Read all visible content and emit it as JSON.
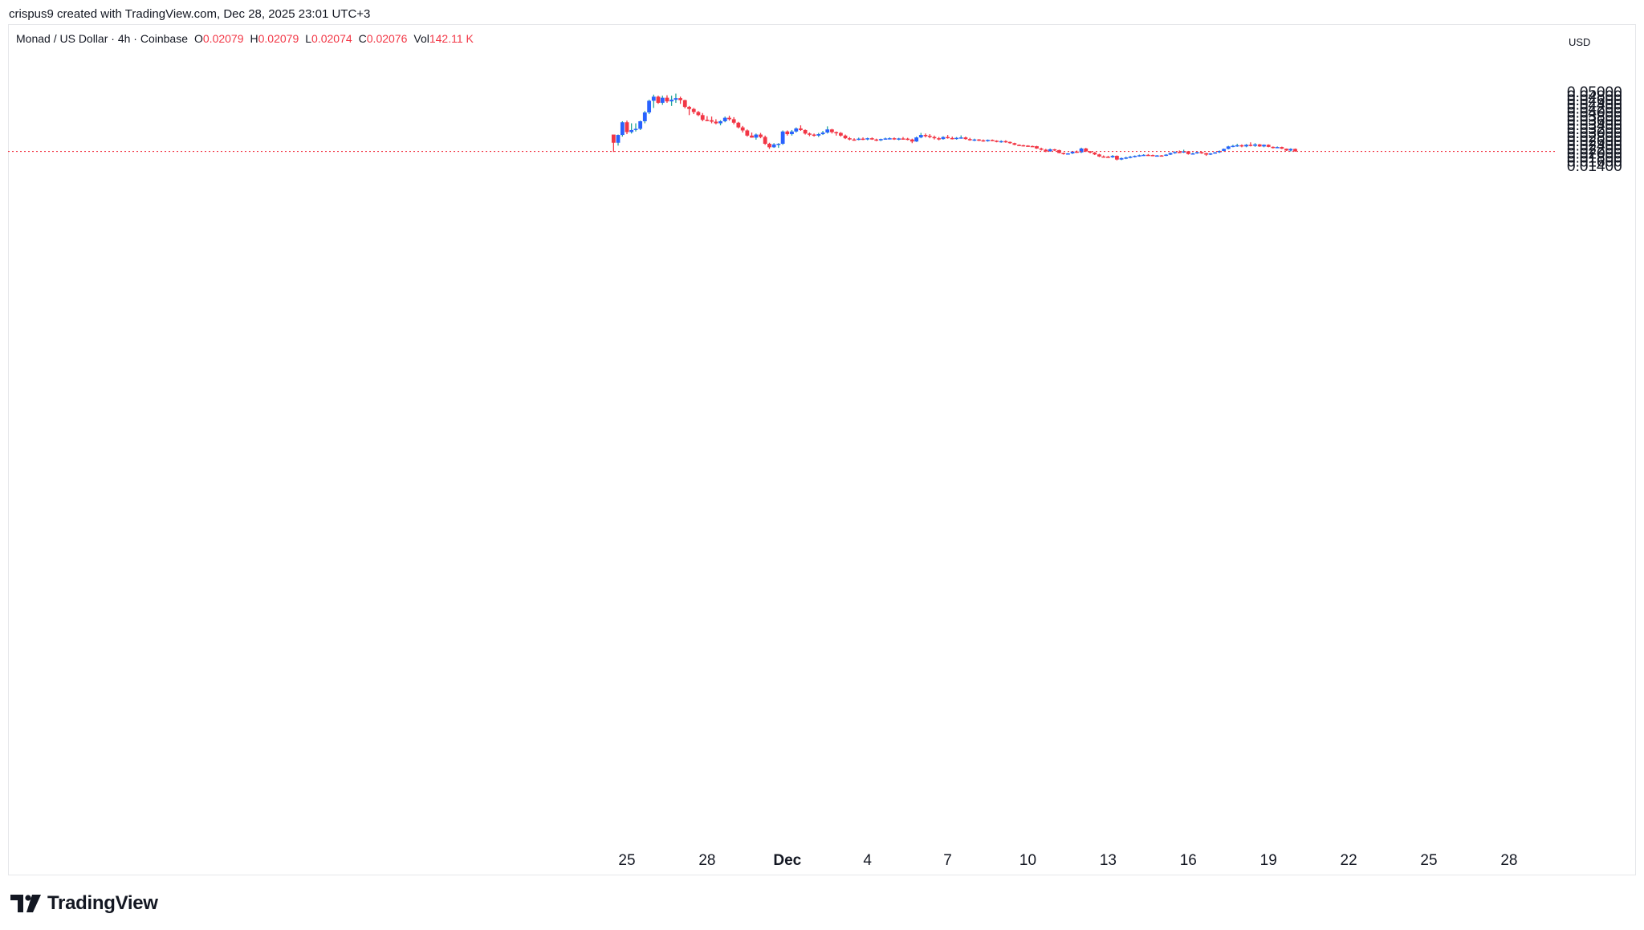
{
  "header": {
    "caption": "crispus9 created with TradingView.com, Dec 28, 2025 23:01 UTC+3"
  },
  "legend": {
    "symbol": "Monad / US Dollar · 4h · Coinbase",
    "o_label": "O",
    "o_value": "0.02079",
    "h_label": "H",
    "h_value": "0.02079",
    "l_label": "L",
    "l_value": "0.02074",
    "c_label": "C",
    "c_value": "0.02076",
    "vol_label": "Vol",
    "vol_value": "142.11 K"
  },
  "currency": "USD",
  "footer": {
    "brand": "TradingView"
  },
  "colors": {
    "up": "#2962ff",
    "down": "#f23645",
    "wick_up": "#26a69a",
    "wick_down": "#f23645",
    "price_line": "#f23645"
  },
  "chart_data": {
    "type": "candlestick",
    "x_ticks": [
      {
        "label": "25",
        "day": 25,
        "major": false
      },
      {
        "label": "28",
        "day": 28,
        "major": false
      },
      {
        "label": "Dec",
        "day": 31,
        "major": true
      },
      {
        "label": "4",
        "day": 34,
        "major": false
      },
      {
        "label": "7",
        "day": 37,
        "major": false
      },
      {
        "label": "10",
        "day": 40,
        "major": false
      },
      {
        "label": "13",
        "day": 43,
        "major": false
      },
      {
        "label": "16",
        "day": 46,
        "major": false
      },
      {
        "label": "19",
        "day": 49,
        "major": false
      },
      {
        "label": "22",
        "day": 52,
        "major": false
      },
      {
        "label": "25",
        "day": 55,
        "major": false
      },
      {
        "label": "28",
        "day": 58,
        "major": false
      }
    ],
    "y_ticks": [
      "0.05000",
      "0.04800",
      "0.04600",
      "0.04400",
      "0.04200",
      "0.04000",
      "0.03800",
      "0.03600",
      "0.03400",
      "0.03200",
      "0.03000",
      "0.02800",
      "0.02600",
      "0.02400",
      "0.02200",
      "0.02000",
      "0.01800",
      "0.01600",
      "0.01400"
    ],
    "ylim": [
      0.0125,
      0.0535
    ],
    "last_price": 0.02076,
    "candles": [
      [
        24.5,
        0.029,
        0.0288,
        0.0205,
        0.025
      ],
      [
        24.67,
        0.025,
        0.029,
        0.0236,
        0.0288
      ],
      [
        24.83,
        0.0288,
        0.0355,
        0.028,
        0.035
      ],
      [
        25.0,
        0.035,
        0.0358,
        0.0292,
        0.0302
      ],
      [
        25.17,
        0.0302,
        0.0345,
        0.0295,
        0.0312
      ],
      [
        25.33,
        0.0312,
        0.0345,
        0.0305,
        0.0318
      ],
      [
        25.5,
        0.0318,
        0.0358,
        0.0312,
        0.0355
      ],
      [
        25.67,
        0.0355,
        0.0405,
        0.0345,
        0.0398
      ],
      [
        25.83,
        0.0398,
        0.046,
        0.039,
        0.0455
      ],
      [
        26.0,
        0.0455,
        0.0485,
        0.042,
        0.0475
      ],
      [
        26.17,
        0.0475,
        0.048,
        0.044,
        0.0445
      ],
      [
        26.33,
        0.0445,
        0.048,
        0.0435,
        0.047
      ],
      [
        26.5,
        0.047,
        0.0482,
        0.0445,
        0.0452
      ],
      [
        26.67,
        0.0452,
        0.048,
        0.043,
        0.046
      ],
      [
        26.83,
        0.046,
        0.049,
        0.0445,
        0.0468
      ],
      [
        27.0,
        0.0468,
        0.0475,
        0.044,
        0.0458
      ],
      [
        27.17,
        0.0458,
        0.046,
        0.0418,
        0.0425
      ],
      [
        27.33,
        0.0425,
        0.043,
        0.0385,
        0.0415
      ],
      [
        27.5,
        0.0415,
        0.042,
        0.039,
        0.04
      ],
      [
        27.67,
        0.04,
        0.0405,
        0.038,
        0.0385
      ],
      [
        27.83,
        0.0385,
        0.0395,
        0.0355,
        0.0362
      ],
      [
        28.0,
        0.0362,
        0.038,
        0.0355,
        0.036
      ],
      [
        28.17,
        0.036,
        0.0378,
        0.0345,
        0.0353
      ],
      [
        28.33,
        0.0353,
        0.0365,
        0.034,
        0.0345
      ],
      [
        28.5,
        0.0345,
        0.036,
        0.0335,
        0.0355
      ],
      [
        28.67,
        0.0355,
        0.0378,
        0.035,
        0.0372
      ],
      [
        28.83,
        0.0372,
        0.0382,
        0.0358,
        0.0365
      ],
      [
        29.0,
        0.0365,
        0.0375,
        0.034,
        0.0348
      ],
      [
        29.17,
        0.0348,
        0.0352,
        0.032,
        0.0325
      ],
      [
        29.33,
        0.0325,
        0.0332,
        0.03,
        0.031
      ],
      [
        29.5,
        0.031,
        0.0315,
        0.028,
        0.0285
      ],
      [
        29.67,
        0.0285,
        0.03,
        0.0275,
        0.0275
      ],
      [
        29.83,
        0.0275,
        0.0295,
        0.0265,
        0.029
      ],
      [
        30.0,
        0.029,
        0.0298,
        0.0272,
        0.0278
      ],
      [
        30.17,
        0.0278,
        0.0285,
        0.024,
        0.0245
      ],
      [
        30.33,
        0.0245,
        0.025,
        0.022,
        0.0228
      ],
      [
        30.5,
        0.0228,
        0.0248,
        0.0225,
        0.0242
      ],
      [
        30.67,
        0.0242,
        0.0248,
        0.0225,
        0.0245
      ],
      [
        30.83,
        0.0245,
        0.031,
        0.024,
        0.0305
      ],
      [
        31.0,
        0.0305,
        0.031,
        0.0285,
        0.0292
      ],
      [
        31.17,
        0.0292,
        0.0312,
        0.0285,
        0.0305
      ],
      [
        31.33,
        0.0305,
        0.0325,
        0.03,
        0.032
      ],
      [
        31.5,
        0.032,
        0.0335,
        0.0308,
        0.0312
      ],
      [
        31.67,
        0.0312,
        0.0315,
        0.029,
        0.0295
      ],
      [
        31.83,
        0.0295,
        0.03,
        0.0282,
        0.029
      ],
      [
        32.0,
        0.029,
        0.0295,
        0.028,
        0.0285
      ],
      [
        32.17,
        0.0285,
        0.0298,
        0.0278,
        0.0292
      ],
      [
        32.33,
        0.0292,
        0.0308,
        0.0288,
        0.03
      ],
      [
        32.5,
        0.03,
        0.033,
        0.0295,
        0.0315
      ],
      [
        32.67,
        0.0315,
        0.0318,
        0.0295,
        0.0302
      ],
      [
        32.83,
        0.0302,
        0.0305,
        0.0285,
        0.0298
      ],
      [
        33.0,
        0.0298,
        0.0302,
        0.028,
        0.0285
      ],
      [
        33.17,
        0.0285,
        0.029,
        0.0268,
        0.0272
      ],
      [
        33.33,
        0.0272,
        0.0278,
        0.0262,
        0.0266
      ],
      [
        33.5,
        0.0266,
        0.0272,
        0.026,
        0.0265
      ],
      [
        33.67,
        0.0265,
        0.0275,
        0.0262,
        0.027
      ],
      [
        33.83,
        0.027,
        0.0276,
        0.0263,
        0.0268
      ],
      [
        34.0,
        0.0268,
        0.0275,
        0.0262,
        0.0272
      ],
      [
        34.17,
        0.0272,
        0.0276,
        0.0264,
        0.0266
      ],
      [
        34.33,
        0.0266,
        0.027,
        0.0258,
        0.0262
      ],
      [
        34.5,
        0.0262,
        0.027,
        0.0258,
        0.0268
      ],
      [
        34.67,
        0.0268,
        0.0275,
        0.0265,
        0.0271
      ],
      [
        34.83,
        0.0271,
        0.0276,
        0.0266,
        0.0272
      ],
      [
        35.0,
        0.0272,
        0.0276,
        0.0264,
        0.0268
      ],
      [
        35.17,
        0.0268,
        0.0274,
        0.0262,
        0.0271
      ],
      [
        35.33,
        0.0271,
        0.0278,
        0.0266,
        0.027
      ],
      [
        35.5,
        0.027,
        0.0274,
        0.0262,
        0.0266
      ],
      [
        35.67,
        0.0266,
        0.027,
        0.0248,
        0.0256
      ],
      [
        35.83,
        0.0256,
        0.028,
        0.0254,
        0.0276
      ],
      [
        36.0,
        0.0276,
        0.0298,
        0.0272,
        0.0288
      ],
      [
        36.17,
        0.0288,
        0.0295,
        0.0276,
        0.0284
      ],
      [
        36.33,
        0.0284,
        0.0292,
        0.0272,
        0.0278
      ],
      [
        36.5,
        0.0278,
        0.0285,
        0.0266,
        0.0272
      ],
      [
        36.67,
        0.0272,
        0.0278,
        0.0262,
        0.0268
      ],
      [
        36.83,
        0.0268,
        0.0282,
        0.0265,
        0.0278
      ],
      [
        37.0,
        0.0278,
        0.0288,
        0.027,
        0.0273
      ],
      [
        37.17,
        0.0273,
        0.028,
        0.0266,
        0.027
      ],
      [
        37.33,
        0.027,
        0.0278,
        0.0265,
        0.0274
      ],
      [
        37.5,
        0.0274,
        0.0286,
        0.027,
        0.0276
      ],
      [
        37.67,
        0.0276,
        0.028,
        0.0265,
        0.0268
      ],
      [
        37.83,
        0.0268,
        0.0274,
        0.026,
        0.0265
      ],
      [
        38.0,
        0.0265,
        0.027,
        0.0258,
        0.0266
      ],
      [
        38.17,
        0.0266,
        0.0268,
        0.0258,
        0.0262
      ],
      [
        38.33,
        0.0262,
        0.0266,
        0.0255,
        0.026
      ],
      [
        38.5,
        0.026,
        0.0266,
        0.0255,
        0.0264
      ],
      [
        38.67,
        0.0264,
        0.0266,
        0.0258,
        0.026
      ],
      [
        38.83,
        0.026,
        0.0262,
        0.0252,
        0.0256
      ],
      [
        39.0,
        0.0256,
        0.0262,
        0.025,
        0.0258
      ],
      [
        39.17,
        0.0258,
        0.0262,
        0.025,
        0.0254
      ],
      [
        39.33,
        0.0254,
        0.0256,
        0.0245,
        0.0248
      ],
      [
        39.5,
        0.0248,
        0.025,
        0.0238,
        0.024
      ],
      [
        39.67,
        0.024,
        0.0242,
        0.0234,
        0.0238
      ],
      [
        39.83,
        0.0238,
        0.024,
        0.0232,
        0.0236
      ],
      [
        40.0,
        0.0236,
        0.0238,
        0.023,
        0.0234
      ],
      [
        40.17,
        0.0234,
        0.0236,
        0.023,
        0.0233
      ],
      [
        40.33,
        0.0233,
        0.0235,
        0.022,
        0.0222
      ],
      [
        40.5,
        0.0222,
        0.0226,
        0.0212,
        0.0216
      ],
      [
        40.67,
        0.0216,
        0.022,
        0.0204,
        0.0208
      ],
      [
        40.83,
        0.0208,
        0.0222,
        0.0206,
        0.0218
      ],
      [
        41.0,
        0.0218,
        0.022,
        0.021,
        0.0214
      ],
      [
        41.17,
        0.0214,
        0.0216,
        0.0198,
        0.02
      ],
      [
        41.33,
        0.02,
        0.0202,
        0.0192,
        0.0195
      ],
      [
        41.5,
        0.0195,
        0.02,
        0.0192,
        0.0198
      ],
      [
        41.67,
        0.0198,
        0.021,
        0.0195,
        0.0207
      ],
      [
        41.83,
        0.0207,
        0.0212,
        0.02,
        0.0203
      ],
      [
        42.0,
        0.0203,
        0.0226,
        0.02,
        0.0222
      ],
      [
        42.17,
        0.0222,
        0.0225,
        0.0205,
        0.0208
      ],
      [
        42.33,
        0.0208,
        0.021,
        0.0198,
        0.0202
      ],
      [
        42.5,
        0.0202,
        0.0205,
        0.019,
        0.0193
      ],
      [
        42.67,
        0.0193,
        0.0196,
        0.018,
        0.0183
      ],
      [
        42.83,
        0.0183,
        0.0188,
        0.0178,
        0.0182
      ],
      [
        43.0,
        0.0182,
        0.0186,
        0.0176,
        0.0179
      ],
      [
        43.17,
        0.0179,
        0.019,
        0.0176,
        0.0186
      ],
      [
        43.33,
        0.0186,
        0.0188,
        0.0164,
        0.0168
      ],
      [
        43.5,
        0.0168,
        0.0178,
        0.0165,
        0.0175
      ],
      [
        43.67,
        0.0175,
        0.0182,
        0.017,
        0.0178
      ],
      [
        43.83,
        0.0178,
        0.0186,
        0.0174,
        0.0182
      ],
      [
        44.0,
        0.0182,
        0.0188,
        0.0178,
        0.0186
      ],
      [
        44.17,
        0.0186,
        0.0192,
        0.0182,
        0.0189
      ],
      [
        44.33,
        0.0189,
        0.0194,
        0.0186,
        0.0191
      ],
      [
        44.5,
        0.0191,
        0.0195,
        0.0186,
        0.019
      ],
      [
        44.67,
        0.019,
        0.0192,
        0.0184,
        0.0186
      ],
      [
        44.83,
        0.0186,
        0.019,
        0.0182,
        0.0188
      ],
      [
        45.0,
        0.0188,
        0.019,
        0.0184,
        0.0187
      ],
      [
        45.17,
        0.0187,
        0.0195,
        0.0185,
        0.0192
      ],
      [
        45.33,
        0.0192,
        0.0202,
        0.019,
        0.02
      ],
      [
        45.5,
        0.02,
        0.0208,
        0.0196,
        0.0205
      ],
      [
        45.67,
        0.0205,
        0.0212,
        0.02,
        0.0204
      ],
      [
        45.83,
        0.0204,
        0.0216,
        0.02,
        0.0208
      ],
      [
        46.0,
        0.0208,
        0.021,
        0.0192,
        0.0195
      ],
      [
        46.17,
        0.0195,
        0.0202,
        0.0192,
        0.0198
      ],
      [
        46.33,
        0.0198,
        0.0208,
        0.0196,
        0.0204
      ],
      [
        46.5,
        0.0204,
        0.0206,
        0.0196,
        0.0199
      ],
      [
        46.67,
        0.0199,
        0.0201,
        0.0186,
        0.0192
      ],
      [
        46.83,
        0.0192,
        0.02,
        0.019,
        0.0198
      ],
      [
        47.0,
        0.0198,
        0.0205,
        0.0196,
        0.0203
      ],
      [
        47.17,
        0.0203,
        0.0212,
        0.02,
        0.021
      ],
      [
        47.33,
        0.021,
        0.0222,
        0.0208,
        0.022
      ],
      [
        47.5,
        0.022,
        0.0235,
        0.0218,
        0.0232
      ],
      [
        47.67,
        0.0232,
        0.024,
        0.0228,
        0.0235
      ],
      [
        47.83,
        0.0235,
        0.0245,
        0.023,
        0.0238
      ],
      [
        48.0,
        0.0238,
        0.0242,
        0.0228,
        0.0232
      ],
      [
        48.17,
        0.0232,
        0.0244,
        0.0228,
        0.024
      ],
      [
        48.33,
        0.024,
        0.0252,
        0.0232,
        0.0235
      ],
      [
        48.5,
        0.0235,
        0.0248,
        0.023,
        0.0242
      ],
      [
        48.67,
        0.0242,
        0.0244,
        0.023,
        0.0232
      ],
      [
        48.83,
        0.0232,
        0.0242,
        0.0228,
        0.024
      ],
      [
        49.0,
        0.024,
        0.0242,
        0.0228,
        0.023
      ],
      [
        49.17,
        0.023,
        0.0232,
        0.0222,
        0.0227
      ],
      [
        49.33,
        0.0227,
        0.0232,
        0.0224,
        0.0229
      ],
      [
        49.5,
        0.0229,
        0.0231,
        0.0219,
        0.0221
      ],
      [
        49.67,
        0.0221,
        0.0222,
        0.021,
        0.0212
      ],
      [
        49.83,
        0.0212,
        0.0223,
        0.0207,
        0.022
      ],
      [
        50.0,
        0.022,
        0.0222,
        0.0206,
        0.0208
      ]
    ]
  }
}
